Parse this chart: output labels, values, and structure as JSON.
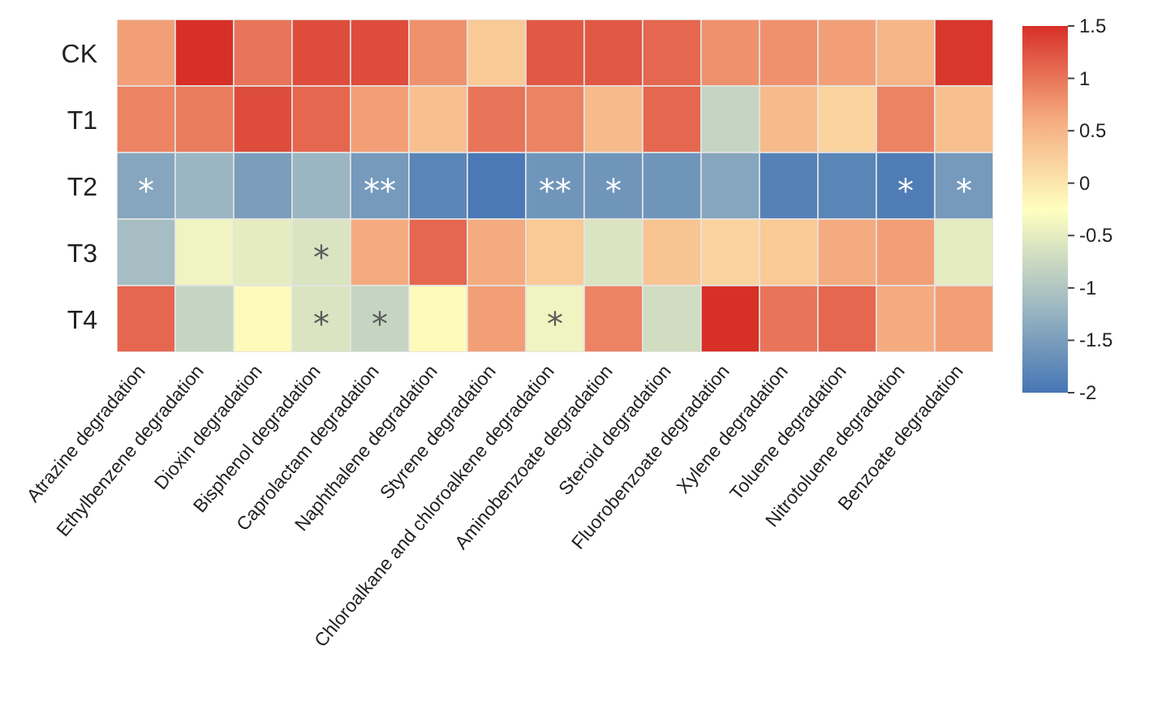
{
  "chart_data": {
    "type": "heatmap",
    "categories": [
      "Atrazine degradation",
      "Ethylbenzene degradation",
      "Dioxin degradation",
      "Bisphenol degradation",
      "Caprolactam degradation",
      "Naphthalene degradation",
      "Styrene degradation",
      "Chloroalkane and chloroalkene degradation",
      "Aminobenzoate degradation",
      "Steroid degradation",
      "Fluorobenzoate degradation",
      "Xylene degradation",
      "Toluene degradation",
      "Nitrotoluene degradation",
      "Benzoate degradation"
    ],
    "y_categories": [
      "CK",
      "T1",
      "T2",
      "T3",
      "T4"
    ],
    "cells": [
      [
        0.7,
        1.5,
        1.0,
        1.3,
        1.3,
        0.8,
        0.3,
        1.2,
        1.2,
        1.1,
        0.8,
        0.8,
        0.7,
        0.5,
        1.45
      ],
      [
        0.9,
        0.95,
        1.3,
        1.1,
        0.7,
        0.4,
        1.0,
        0.9,
        0.45,
        1.1,
        -0.8,
        0.45,
        0.2,
        0.9,
        0.4
      ],
      [
        -1.4,
        -1.2,
        -1.5,
        -1.2,
        -1.55,
        -1.8,
        -1.95,
        -1.6,
        -1.6,
        -1.6,
        -1.4,
        -1.85,
        -1.8,
        -1.9,
        -1.55
      ],
      [
        -1.1,
        -0.4,
        -0.5,
        -0.6,
        0.6,
        1.1,
        0.6,
        0.3,
        -0.6,
        0.35,
        0.2,
        0.3,
        0.6,
        0.7,
        -0.5
      ],
      [
        1.1,
        -0.8,
        -0.2,
        -0.6,
        -0.8,
        -0.2,
        0.7,
        -0.4,
        0.9,
        -0.7,
        1.5,
        1.0,
        1.1,
        0.6,
        0.7
      ]
    ],
    "cell_labels": [
      [
        null,
        null,
        null,
        null,
        null,
        null,
        null,
        null,
        null,
        null,
        null,
        null,
        null,
        null,
        null
      ],
      [
        null,
        null,
        null,
        null,
        null,
        null,
        null,
        null,
        null,
        null,
        null,
        null,
        null,
        null,
        null
      ],
      [
        "*",
        null,
        null,
        null,
        "**",
        null,
        null,
        "**",
        "*",
        null,
        null,
        null,
        null,
        "*",
        "*"
      ],
      [
        null,
        null,
        null,
        "*",
        null,
        null,
        null,
        null,
        null,
        null,
        null,
        null,
        null,
        null,
        null
      ],
      [
        null,
        null,
        null,
        "*",
        "*",
        null,
        null,
        "*",
        null,
        null,
        null,
        null,
        null,
        null,
        null
      ]
    ],
    "clim": [
      -2,
      1.5
    ],
    "cticks": [
      -2,
      -1.5,
      -1,
      -0.5,
      0,
      0.5,
      1,
      1.5
    ]
  }
}
